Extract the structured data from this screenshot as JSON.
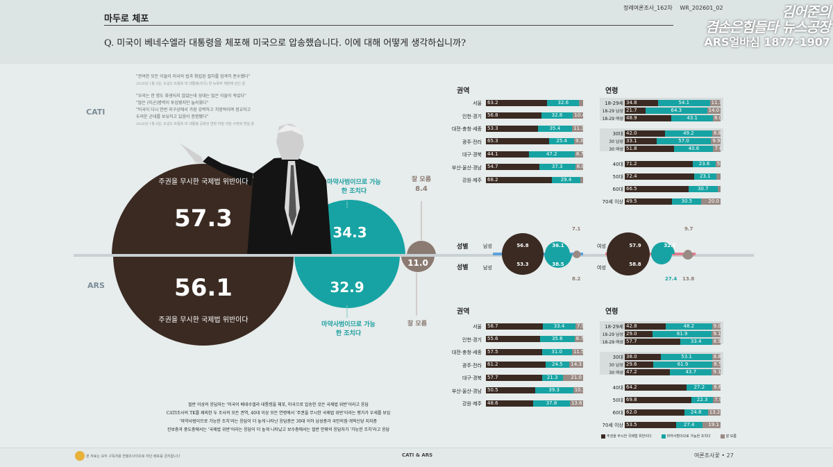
{
  "header": {
    "tag": "마두로 체포",
    "question": "Q. 미국이 베네수엘라 대통령을 체포해 미국으로 압송했습니다. 이에 대해 어떻게 생각하십니까?",
    "meta": [
      "정례여론조사_162차",
      "WR_202601_02"
    ],
    "logo_line1": "김어준의",
    "logo_line2": "겸손은힘들다 뉴스공장",
    "logo_line3": "ARS얼바심 1877-1907"
  },
  "quotes": {
    "q1": "\"관여한 모든 이들이 미국의 법과 확립된 절차를 엄격히 준수했다\"",
    "q1_src": "2026년 1월 5일, 도널드 트럼프 미 대통령(미국) 한 뉴욕주 재판에 넘긴 글",
    "q2a": "\"우리는 한 명도 화생되지 않았는데 상대는 많은 이들이 죽었다\"",
    "q2b": "\"많은 (미군)병력이 투입됐지만 놀라웠다\"",
    "q2c": "\"미국이 다시 한번 지구상에서 가장 강력하고 치명적이며 정교하고",
    "q2d": "두려운 군대를 보유하고 있음이 증명됐다\"",
    "q2_src": "2026년 1월 6일, 도널드 트럼프 미 대통령 공화당 연방 하원 의원 수련회 연설 중"
  },
  "labels": {
    "cati": "CATI",
    "ars": "ARS"
  },
  "main": {
    "cati_violation_label": "주권을 무시한 국제법 위반이다",
    "cati_violation": "57.3",
    "cati_drug_label": "마약사범이므로 가능한 조치다",
    "cati_drug": "34.3",
    "cati_dk_label": "잘 모름",
    "cati_dk": "8.4",
    "ars_violation_label": "주권을 무시한 국제법 위반이다",
    "ars_violation": "56.1",
    "ars_drug_label": "마약사범이므로 가능한 조치다",
    "ars_drug": "32.9",
    "ars_dk_label": "잘 모름",
    "ars_dk": "11.0"
  },
  "region_title": "권역",
  "age_title": "연령",
  "gender_title": "성별",
  "cati_region": [
    {
      "name": "서울",
      "v": [
        63.2,
        32.6,
        4.2
      ],
      "t": [
        "63.2",
        "32.6",
        ""
      ]
    },
    {
      "name": "인천·경기",
      "v": [
        56.8,
        32.8,
        10.4
      ],
      "t": [
        "56.8",
        "32.8",
        "10.4"
      ]
    },
    {
      "name": "대전·충청·세종",
      "v": [
        53.3,
        35.4,
        11.3
      ],
      "t": [
        "53.3",
        "35.4",
        "11.3"
      ]
    },
    {
      "name": "광주·전라",
      "v": [
        65.3,
        25.4,
        9.3
      ],
      "t": [
        "65.3",
        "25.4",
        "9.3"
      ]
    },
    {
      "name": "대구·경북",
      "v": [
        44.1,
        47.2,
        8.7
      ],
      "t": [
        "44.1",
        "47.2",
        "8.7"
      ]
    },
    {
      "name": "부산·울산·경남",
      "v": [
        54.7,
        37.3,
        8.0
      ],
      "t": [
        "54.7",
        "37.3",
        "8.0"
      ]
    },
    {
      "name": "강원·제주",
      "v": [
        68.2,
        29.4,
        2.4
      ],
      "t": [
        "68.2",
        "29.4",
        ""
      ]
    }
  ],
  "cati_age": [
    {
      "name": "18-29세",
      "v": [
        34.8,
        54.1,
        11.1
      ],
      "t": [
        "34.8",
        "54.1",
        "11.1"
      ],
      "sub": false
    },
    {
      "name": "18-29 남성",
      "v": [
        21.7,
        64.3,
        14.0
      ],
      "t": [
        "21.7",
        "64.3",
        "14.0"
      ],
      "sub": true
    },
    {
      "name": "18-29 여성",
      "v": [
        48.9,
        43.1,
        8.0
      ],
      "t": [
        "48.9",
        "43.1",
        "8.0"
      ],
      "sub": true
    },
    {
      "name": "30대",
      "v": [
        42.0,
        49.2,
        8.8
      ],
      "t": [
        "42.0",
        "49.2",
        "8.8"
      ],
      "sub": false
    },
    {
      "name": "30 남성",
      "v": [
        33.1,
        57.0,
        9.9
      ],
      "t": [
        "33.1",
        "57.0",
        "9.9"
      ],
      "sub": true
    },
    {
      "name": "30 여성",
      "v": [
        51.8,
        40.6,
        7.6
      ],
      "t": [
        "51.8",
        "40.6",
        "7.6"
      ],
      "sub": true
    },
    {
      "name": "40대",
      "v": [
        71.2,
        23.6,
        5.2
      ],
      "t": [
        "71.2",
        "23.6",
        "5.2"
      ],
      "sub": false
    },
    {
      "name": "50대",
      "v": [
        72.4,
        23.1,
        4.5
      ],
      "t": [
        "72.4",
        "23.1",
        ""
      ],
      "sub": false
    },
    {
      "name": "60대",
      "v": [
        66.5,
        30.7,
        2.8
      ],
      "t": [
        "66.5",
        "30.7",
        ""
      ],
      "sub": false
    },
    {
      "name": "70세 이상",
      "v": [
        49.5,
        30.5,
        20.0
      ],
      "t": [
        "49.5",
        "30.5",
        "20.0"
      ],
      "sub": false
    }
  ],
  "ars_region": [
    {
      "name": "서울",
      "v": [
        58.7,
        33.4,
        7.9
      ],
      "t": [
        "58.7",
        "33.4",
        "7.9"
      ]
    },
    {
      "name": "인천·경기",
      "v": [
        55.6,
        35.6,
        8.7
      ],
      "t": [
        "55.6",
        "35.6",
        "8.7"
      ]
    },
    {
      "name": "대전·충청·세종",
      "v": [
        57.5,
        31.0,
        11.5
      ],
      "t": [
        "57.5",
        "31.0",
        "11.5"
      ]
    },
    {
      "name": "광주·전라",
      "v": [
        61.2,
        24.5,
        14.3
      ],
      "t": [
        "61.2",
        "24.5",
        "14.3"
      ]
    },
    {
      "name": "대구·경북",
      "v": [
        57.7,
        21.3,
        21.0
      ],
      "t": [
        "57.7",
        "21.3",
        "21.0"
      ]
    },
    {
      "name": "부산·울산·경남",
      "v": [
        50.5,
        39.3,
        10.2
      ],
      "t": [
        "50.5",
        "39.3",
        "10.2"
      ]
    },
    {
      "name": "강원·제주",
      "v": [
        48.6,
        37.8,
        13.6
      ],
      "t": [
        "48.6",
        "37.8",
        "13.6"
      ]
    }
  ],
  "ars_age": [
    {
      "name": "18-29세",
      "v": [
        42.8,
        48.2,
        9.0
      ],
      "t": [
        "42.8",
        "48.2",
        "9.0"
      ],
      "sub": false
    },
    {
      "name": "18-29 남성",
      "v": [
        29.0,
        61.9,
        9.1
      ],
      "t": [
        "29.0",
        "61.9",
        "9.1"
      ],
      "sub": true
    },
    {
      "name": "18-29 여성",
      "v": [
        57.7,
        33.4,
        8.9
      ],
      "t": [
        "57.7",
        "33.4",
        "8.9"
      ],
      "sub": true
    },
    {
      "name": "30대",
      "v": [
        38.0,
        53.1,
        8.8
      ],
      "t": [
        "38.0",
        "53.1",
        "8.8"
      ],
      "sub": false
    },
    {
      "name": "30 남성",
      "v": [
        29.6,
        61.9,
        8.5
      ],
      "t": [
        "29.6",
        "61.9",
        "8.5"
      ],
      "sub": true
    },
    {
      "name": "30 여성",
      "v": [
        47.2,
        43.7,
        9.1
      ],
      "t": [
        "47.2",
        "43.7",
        "9.1"
      ],
      "sub": true
    },
    {
      "name": "40대",
      "v": [
        64.2,
        27.2,
        8.6
      ],
      "t": [
        "64.2",
        "27.2",
        "8.6"
      ],
      "sub": false
    },
    {
      "name": "50대",
      "v": [
        69.8,
        22.3,
        7.9
      ],
      "t": [
        "69.8",
        "22.3",
        "7.9"
      ],
      "sub": false
    },
    {
      "name": "60대",
      "v": [
        62.0,
        24.8,
        13.2
      ],
      "t": [
        "62.0",
        "24.8",
        "13.2"
      ],
      "sub": false
    },
    {
      "name": "70세 이상",
      "v": [
        53.5,
        27.4,
        19.1
      ],
      "t": [
        "53.5",
        "27.4",
        "19.1"
      ],
      "sub": false
    }
  ],
  "gender": {
    "male_label": "남성",
    "female_label": "여성",
    "cati_male": [
      "56.8",
      "36.1",
      "7.1"
    ],
    "ars_male": [
      "53.3",
      "38.5",
      "8.2"
    ],
    "cati_female": [
      "57.9",
      "32.5",
      "9.7"
    ],
    "ars_female": [
      "58.8",
      "27.4",
      "13.8"
    ]
  },
  "summary": [
    "절반 이상의 응답자는 '미국이 베네수엘라 대통령을 체포, 미국으로 압송한 것은 국제법 위반'이라고 응답",
    "CATI조사의 TK를 제외한 두 조사의 모든 권역, 40대 이상 모든 연령에서 '주권을 무시한 국제법 위반'이라는 평가가 우세를 보임",
    "'마약사범이므로 가능한 조치'라는 응답이 더 높게 나타난 응답층은 30대 이하 남성층과 국민의힘·개혁신당 지지층",
    "진보층과 중도층에서는 '국제법 위반'이라는 응답이 더 높게 나타났고 보수층에서는 절반 안팎의 응답자가 '가능한 조치'라고 응답"
  ],
  "legend": [
    "주권을 무시한 국제법 위반이다",
    "마약사범이므로 가능한 조치다",
    "잘 모름"
  ],
  "footer": {
    "left": "본 자료는 모두 구독자용 연령조사이므로 자단 배포를 금지합니다",
    "center": "CATI & ARS",
    "right": "여론조사꽃 • 27"
  },
  "colors": {
    "dark": "#3a2a22",
    "teal": "#17a3a3",
    "gray": "#9a8a84"
  },
  "chart_data": [
    {
      "type": "bar",
      "title": "CATI 권역",
      "categories": [
        "서울",
        "인천·경기",
        "대전·충청·세종",
        "광주·전라",
        "대구·경북",
        "부산·울산·경남",
        "강원·제주"
      ],
      "series": [
        {
          "name": "주권을 무시한 국제법 위반이다",
          "values": [
            63.2,
            56.8,
            53.3,
            65.3,
            44.1,
            54.7,
            68.2
          ]
        },
        {
          "name": "마약사범이므로 가능한 조치다",
          "values": [
            32.6,
            32.8,
            35.4,
            25.4,
            47.2,
            37.3,
            29.4
          ]
        }
      ]
    },
    {
      "type": "bar",
      "title": "ARS 권역",
      "categories": [
        "서울",
        "인천·경기",
        "대전·충청·세종",
        "광주·전라",
        "대구·경북",
        "부산·울산·경남",
        "강원·제주"
      ],
      "series": [
        {
          "name": "주권을 무시한 국제법 위반이다",
          "values": [
            58.7,
            55.6,
            57.5,
            61.2,
            57.7,
            50.5,
            48.6
          ]
        },
        {
          "name": "마약사범이므로 가능한 조치다",
          "values": [
            33.4,
            35.6,
            31.0,
            24.5,
            21.3,
            39.3,
            37.8
          ]
        },
        {
          "name": "잘 모름",
          "values": [
            7.9,
            8.7,
            11.5,
            14.3,
            21.0,
            10.2,
            13.6
          ]
        }
      ]
    }
  ]
}
